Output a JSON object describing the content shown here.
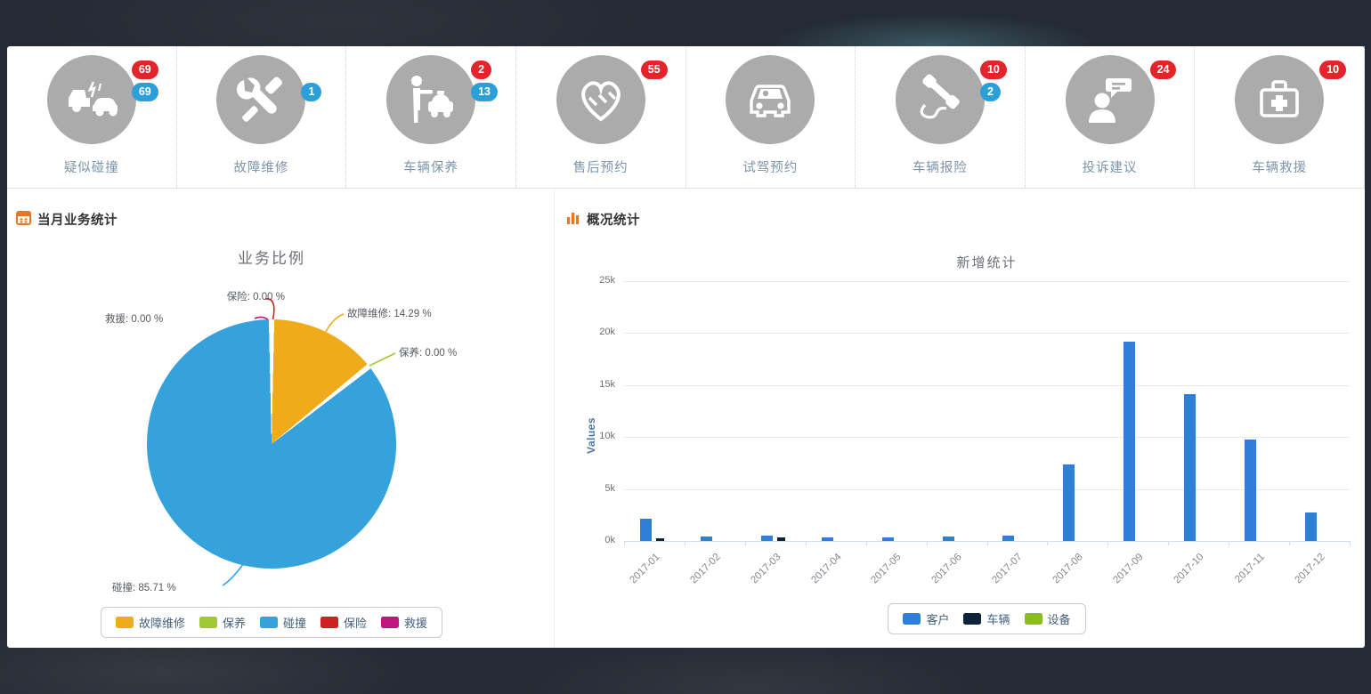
{
  "colors": {
    "badge_red": "#e3242b",
    "badge_blue": "#2d9fd8",
    "header_accent_orange": "#e87722",
    "icon_circle_gray": "#ababab",
    "shortcut_label_blue_gray": "#7d94a9"
  },
  "shortcuts": {
    "items": [
      {
        "label": "疑似碰撞",
        "icon": "collision-icon",
        "badges": [
          {
            "color": "red",
            "value": "69"
          },
          {
            "color": "blue",
            "value": "69"
          }
        ]
      },
      {
        "label": "故障维修",
        "icon": "repair-icon",
        "badges": [
          {
            "color": "blue",
            "value": "1"
          }
        ]
      },
      {
        "label": "车辆保养",
        "icon": "maintenance-icon",
        "badges": [
          {
            "color": "red",
            "value": "2"
          },
          {
            "color": "blue",
            "value": "13"
          }
        ]
      },
      {
        "label": "售后预约",
        "icon": "after-sales-icon",
        "badges": [
          {
            "color": "red",
            "value": "55"
          }
        ]
      },
      {
        "label": "试驾预约",
        "icon": "test-drive-icon",
        "badges": []
      },
      {
        "label": "车辆报险",
        "icon": "insurance-report-icon",
        "badges": [
          {
            "color": "red",
            "value": "10"
          },
          {
            "color": "blue",
            "value": "2"
          }
        ]
      },
      {
        "label": "投诉建议",
        "icon": "complaints-icon",
        "badges": [
          {
            "color": "red",
            "value": "24"
          }
        ]
      },
      {
        "label": "车辆救援",
        "icon": "rescue-icon",
        "badges": [
          {
            "color": "red",
            "value": "10"
          }
        ]
      }
    ]
  },
  "left_panel": {
    "header": "当月业务统计"
  },
  "right_panel": {
    "header": "概况统计"
  },
  "chart_data": [
    {
      "type": "pie",
      "title": "业务比例",
      "slices": [
        {
          "name": "故障维修",
          "value": 14.29,
          "color": "#F0AB1B"
        },
        {
          "name": "保养",
          "value": 0.0,
          "color": "#A0C837"
        },
        {
          "name": "碰撞",
          "value": 85.71,
          "color": "#35A2DB"
        },
        {
          "name": "保险",
          "value": 0.0,
          "color": "#CE2121"
        },
        {
          "name": "救援",
          "value": 0.0,
          "color": "#C0157E"
        }
      ],
      "label_format": "name: value %",
      "legend_position": "bottom"
    },
    {
      "type": "bar",
      "title": "新增统计",
      "ylabel": "Values",
      "ylim": [
        0,
        25000
      ],
      "yticks": [
        "0k",
        "5k",
        "10k",
        "15k",
        "20k",
        "25k"
      ],
      "grid": true,
      "categories": [
        "2017-01",
        "2017-02",
        "2017-03",
        "2017-04",
        "2017-05",
        "2017-06",
        "2017-07",
        "2017-08",
        "2017-09",
        "2017-10",
        "2017-11",
        "2017-12"
      ],
      "series": [
        {
          "name": "客户",
          "color": "#2f7ed8",
          "values": [
            2100,
            400,
            500,
            350,
            350,
            400,
            500,
            7400,
            19200,
            14100,
            9800,
            2700
          ]
        },
        {
          "name": "车辆",
          "color": "#0d233a",
          "values": [
            250,
            0,
            300,
            0,
            0,
            0,
            0,
            0,
            0,
            0,
            0,
            0
          ]
        },
        {
          "name": "设备",
          "color": "#8bbc21",
          "values": [
            0,
            0,
            0,
            0,
            0,
            0,
            0,
            0,
            0,
            0,
            0,
            0
          ]
        }
      ],
      "legend_position": "bottom"
    }
  ]
}
